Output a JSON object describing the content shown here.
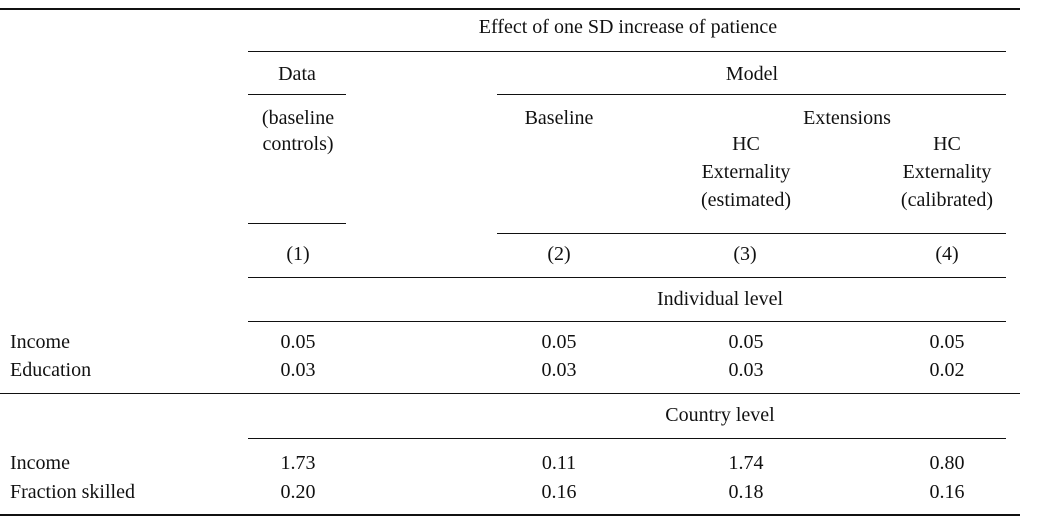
{
  "header": {
    "effect_title": "Effect of one SD increase of patience",
    "data_label": "Data",
    "model_label": "Model",
    "data_sub_line1": "(baseline",
    "data_sub_line2": "controls)",
    "baseline_label": "Baseline",
    "extensions_label": "Extensions",
    "col3_lines": [
      "HC",
      "Externality",
      "(estimated)"
    ],
    "col4_lines": [
      "HC",
      "Externality",
      "(calibrated)"
    ],
    "col_numbers": [
      "(1)",
      "(2)",
      "(3)",
      "(4)"
    ]
  },
  "sections": [
    {
      "title": "Individual level",
      "rows": [
        {
          "label": "Income",
          "values": [
            "0.05",
            "0.05",
            "0.05",
            "0.05"
          ]
        },
        {
          "label": "Education",
          "values": [
            "0.03",
            "0.03",
            "0.03",
            "0.02"
          ]
        }
      ]
    },
    {
      "title": "Country level",
      "rows": [
        {
          "label": "Income",
          "values": [
            "1.73",
            "0.11",
            "1.74",
            "0.80"
          ]
        },
        {
          "label": "Fraction skilled",
          "values": [
            "0.20",
            "0.16",
            "0.18",
            "0.16"
          ]
        }
      ]
    }
  ]
}
